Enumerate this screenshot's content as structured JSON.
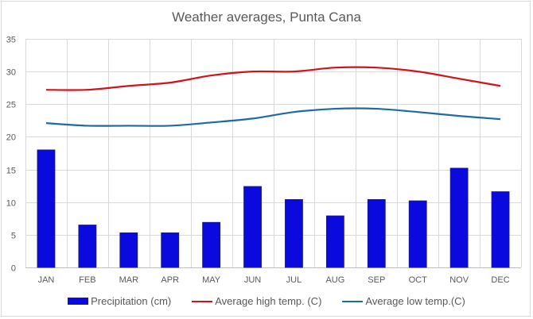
{
  "chart_data": {
    "type": "bar",
    "title": "Weather averages, Punta Cana",
    "xlabel": "",
    "ylabel": "",
    "ylim": [
      0,
      35
    ],
    "yticks": [
      0,
      5,
      10,
      15,
      20,
      25,
      30,
      35
    ],
    "grid": true,
    "legend_position": "bottom",
    "categories": [
      "JAN",
      "FEB",
      "MAR",
      "APR",
      "MAY",
      "JUN",
      "JUL",
      "AUG",
      "SEP",
      "OCT",
      "NOV",
      "DEC"
    ],
    "series": [
      {
        "name": "Precipitation (cm)",
        "type": "bar",
        "color": "#0a0ade",
        "values": [
          18.0,
          6.5,
          5.3,
          5.3,
          6.9,
          12.4,
          10.4,
          7.9,
          10.4,
          10.2,
          15.2,
          11.6
        ]
      },
      {
        "name": "Average high temp. (C)",
        "type": "line",
        "color": "#d0141e",
        "values": [
          27.2,
          27.2,
          27.8,
          28.3,
          29.4,
          30.0,
          30.0,
          30.6,
          30.6,
          30.0,
          28.9,
          27.8
        ]
      },
      {
        "name": "Average low temp.(C)",
        "type": "line",
        "color": "#1f6aa5",
        "values": [
          22.1,
          21.7,
          21.7,
          21.7,
          22.2,
          22.8,
          23.8,
          24.3,
          24.3,
          23.8,
          23.2,
          22.7
        ]
      }
    ]
  }
}
